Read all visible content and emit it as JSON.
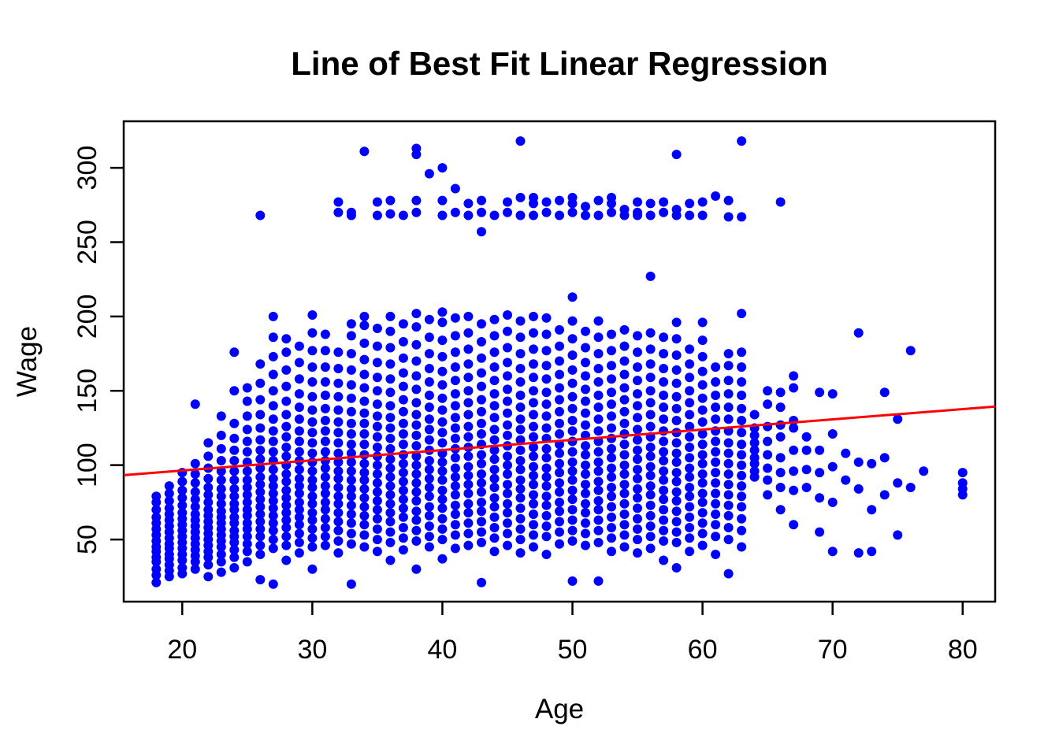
{
  "chart_data": {
    "type": "scatter",
    "title": "Line of Best Fit Linear Regression",
    "xlabel": "Age",
    "ylabel": "Wage",
    "xlim": [
      15.5,
      82.5
    ],
    "ylim": [
      8.2,
      331.3
    ],
    "x_ticks": [
      20,
      30,
      40,
      50,
      60,
      70,
      80
    ],
    "y_ticks": [
      50,
      100,
      150,
      200,
      250,
      300
    ],
    "grid": false,
    "legend": "none",
    "point_color": "#0000FF",
    "line_color": "#FF0000",
    "axis_color": "#000000",
    "regression_line": {
      "slope": 0.688,
      "intercept": 82.6,
      "x1": 15.5,
      "y1": 93.3,
      "x2": 82.5,
      "y2": 139.4
    },
    "columns": {
      "18": [
        21,
        26,
        30,
        35,
        38,
        42,
        45,
        49,
        53,
        57,
        61,
        65,
        70,
        75,
        79
      ],
      "19": [
        25,
        29,
        33,
        37,
        40,
        44,
        47,
        51,
        55,
        59,
        63,
        67,
        71,
        76,
        81,
        86
      ],
      "20": [
        27,
        31,
        36,
        40,
        44,
        48,
        52,
        56,
        60,
        64,
        68,
        73,
        78,
        83,
        89,
        95
      ],
      "21": [
        30,
        35,
        39,
        43,
        47,
        51,
        55,
        59,
        63,
        67,
        72,
        77,
        82,
        88,
        94,
        101,
        141
      ],
      "22": [
        25,
        33,
        38,
        42,
        46,
        50,
        54,
        58,
        62,
        66,
        70,
        75,
        80,
        85,
        91,
        98,
        106,
        115
      ],
      "23": [
        28,
        35,
        40,
        45,
        49,
        53,
        57,
        61,
        65,
        69,
        74,
        79,
        84,
        90,
        96,
        103,
        111,
        120,
        133
      ],
      "24": [
        31,
        38,
        43,
        48,
        52,
        56,
        61,
        65,
        70,
        74,
        79,
        84,
        90,
        96,
        103,
        110,
        118,
        128,
        150,
        176
      ],
      "25": [
        35,
        42,
        47,
        52,
        57,
        61,
        66,
        70,
        75,
        80,
        85,
        90,
        96,
        102,
        109,
        116,
        124,
        133,
        143,
        152
      ],
      "26": [
        23,
        40,
        46,
        52,
        57,
        62,
        67,
        72,
        77,
        82,
        87,
        92,
        98,
        104,
        110,
        117,
        125,
        134,
        144,
        155,
        168,
        268
      ],
      "27": [
        20,
        44,
        50,
        56,
        61,
        66,
        71,
        76,
        81,
        86,
        91,
        97,
        103,
        109,
        116,
        123,
        131,
        140,
        150,
        161,
        173,
        186,
        200
      ],
      "28": [
        36,
        46,
        52,
        58,
        63,
        68,
        73,
        78,
        83,
        89,
        94,
        100,
        106,
        112,
        119,
        126,
        134,
        143,
        153,
        164,
        176,
        185
      ],
      "29": [
        41,
        48,
        54,
        60,
        65,
        70,
        75,
        81,
        86,
        91,
        97,
        103,
        109,
        116,
        123,
        131,
        139,
        148,
        158,
        169,
        180
      ],
      "30": [
        30,
        45,
        51,
        57,
        63,
        68,
        74,
        79,
        85,
        90,
        96,
        102,
        108,
        115,
        122,
        129,
        137,
        146,
        156,
        166,
        177,
        189,
        201
      ],
      "31": [
        46,
        52,
        58,
        64,
        70,
        75,
        81,
        86,
        92,
        98,
        103,
        109,
        116,
        123,
        130,
        138,
        147,
        156,
        166,
        177,
        188
      ],
      "32": [
        41,
        49,
        56,
        62,
        68,
        74,
        79,
        85,
        91,
        96,
        102,
        108,
        115,
        122,
        129,
        137,
        146,
        155,
        165,
        176,
        270,
        277
      ],
      "33": [
        20,
        47,
        54,
        61,
        67,
        73,
        79,
        84,
        90,
        96,
        102,
        108,
        114,
        121,
        128,
        136,
        145,
        154,
        164,
        175,
        187,
        195,
        268,
        270
      ],
      "34": [
        45,
        53,
        60,
        66,
        72,
        78,
        84,
        90,
        95,
        101,
        107,
        114,
        121,
        128,
        135,
        143,
        152,
        161,
        171,
        182,
        194,
        200,
        311
      ],
      "35": [
        42,
        50,
        57,
        64,
        70,
        76,
        82,
        88,
        94,
        100,
        106,
        112,
        119,
        126,
        133,
        141,
        150,
        159,
        169,
        180,
        192,
        268,
        277
      ],
      "36": [
        36,
        48,
        55,
        62,
        68,
        74,
        80,
        86,
        92,
        98,
        104,
        111,
        118,
        125,
        132,
        140,
        149,
        158,
        168,
        179,
        190,
        200,
        269,
        278
      ],
      "37": [
        43,
        51,
        58,
        65,
        71,
        77,
        83,
        89,
        95,
        101,
        107,
        114,
        121,
        128,
        136,
        144,
        153,
        162,
        172,
        183,
        195,
        268
      ],
      "38": [
        30,
        49,
        56,
        63,
        69,
        76,
        82,
        88,
        94,
        100,
        106,
        113,
        120,
        127,
        134,
        142,
        151,
        160,
        170,
        181,
        193,
        202,
        270,
        278,
        309,
        313
      ],
      "39": [
        45,
        52,
        59,
        66,
        72,
        79,
        85,
        91,
        97,
        103,
        110,
        117,
        124,
        131,
        139,
        147,
        156,
        165,
        175,
        186,
        198,
        296
      ],
      "40": [
        37,
        50,
        57,
        64,
        71,
        77,
        83,
        90,
        96,
        102,
        108,
        115,
        122,
        129,
        137,
        145,
        154,
        163,
        173,
        184,
        196,
        203,
        268,
        278,
        300
      ],
      "41": [
        44,
        53,
        60,
        67,
        73,
        80,
        86,
        92,
        98,
        105,
        111,
        118,
        125,
        132,
        140,
        148,
        157,
        166,
        176,
        187,
        199,
        270,
        286
      ],
      "42": [
        46,
        54,
        61,
        68,
        74,
        81,
        87,
        93,
        99,
        106,
        112,
        119,
        126,
        134,
        142,
        150,
        159,
        168,
        178,
        189,
        200,
        268,
        276
      ],
      "43": [
        21,
        48,
        55,
        62,
        69,
        75,
        82,
        88,
        94,
        101,
        107,
        114,
        121,
        128,
        136,
        144,
        153,
        162,
        172,
        183,
        195,
        257,
        270,
        278
      ],
      "44": [
        42,
        51,
        58,
        65,
        72,
        78,
        85,
        91,
        97,
        104,
        110,
        117,
        124,
        132,
        140,
        148,
        157,
        166,
        176,
        187,
        198,
        268
      ],
      "45": [
        46,
        54,
        61,
        68,
        74,
        81,
        87,
        94,
        100,
        106,
        113,
        120,
        127,
        135,
        143,
        151,
        160,
        169,
        179,
        190,
        201,
        270,
        277
      ],
      "46": [
        41,
        50,
        57,
        64,
        71,
        78,
        84,
        90,
        97,
        103,
        110,
        117,
        124,
        131,
        139,
        147,
        156,
        165,
        175,
        186,
        197,
        268,
        280,
        318
      ],
      "47": [
        45,
        53,
        60,
        67,
        74,
        80,
        87,
        93,
        99,
        106,
        112,
        119,
        126,
        134,
        142,
        150,
        159,
        168,
        178,
        189,
        200,
        268,
        276,
        280
      ],
      "48": [
        40,
        52,
        59,
        66,
        73,
        79,
        86,
        92,
        98,
        105,
        111,
        118,
        125,
        133,
        141,
        149,
        158,
        167,
        177,
        188,
        199,
        270,
        277
      ],
      "49": [
        47,
        55,
        62,
        69,
        75,
        82,
        88,
        95,
        101,
        108,
        114,
        121,
        128,
        136,
        144,
        152,
        161,
        170,
        180,
        191,
        268,
        278
      ],
      "50": [
        22,
        49,
        56,
        63,
        70,
        77,
        83,
        90,
        96,
        102,
        109,
        116,
        123,
        130,
        138,
        146,
        155,
        164,
        174,
        185,
        197,
        213,
        270,
        276,
        280
      ],
      "51": [
        46,
        54,
        61,
        68,
        74,
        81,
        87,
        94,
        100,
        107,
        113,
        120,
        127,
        135,
        143,
        151,
        160,
        169,
        179,
        190,
        268,
        274
      ],
      "52": [
        22,
        48,
        56,
        63,
        70,
        76,
        83,
        89,
        96,
        102,
        109,
        116,
        123,
        131,
        139,
        147,
        156,
        165,
        175,
        186,
        197,
        268,
        278
      ],
      "53": [
        42,
        51,
        58,
        65,
        72,
        79,
        85,
        92,
        98,
        105,
        111,
        118,
        125,
        133,
        141,
        149,
        158,
        167,
        177,
        188,
        270,
        276,
        280
      ],
      "54": [
        45,
        53,
        60,
        67,
        74,
        81,
        87,
        94,
        100,
        107,
        114,
        121,
        128,
        136,
        144,
        152,
        161,
        170,
        180,
        191,
        268,
        272
      ],
      "55": [
        41,
        50,
        57,
        64,
        71,
        78,
        84,
        91,
        97,
        104,
        110,
        117,
        124,
        132,
        140,
        148,
        157,
        166,
        176,
        187,
        268,
        270,
        277
      ],
      "56": [
        44,
        52,
        59,
        66,
        73,
        80,
        86,
        93,
        99,
        106,
        112,
        119,
        126,
        134,
        142,
        150,
        159,
        168,
        178,
        189,
        227,
        268,
        276
      ],
      "57": [
        36,
        49,
        56,
        63,
        70,
        77,
        83,
        90,
        96,
        103,
        109,
        116,
        123,
        131,
        139,
        147,
        156,
        165,
        175,
        186,
        270,
        277
      ],
      "58": [
        31,
        48,
        55,
        62,
        69,
        76,
        82,
        89,
        95,
        102,
        108,
        115,
        122,
        130,
        138,
        146,
        155,
        164,
        174,
        185,
        196,
        268,
        272,
        309
      ],
      "59": [
        42,
        51,
        58,
        65,
        72,
        79,
        85,
        92,
        98,
        105,
        112,
        119,
        126,
        134,
        142,
        150,
        159,
        168,
        178,
        268,
        276
      ],
      "60": [
        46,
        54,
        61,
        68,
        75,
        81,
        88,
        94,
        101,
        107,
        114,
        121,
        129,
        137,
        145,
        154,
        163,
        173,
        184,
        196,
        268,
        277
      ],
      "61": [
        40,
        52,
        60,
        67,
        74,
        81,
        88,
        95,
        102,
        109,
        116,
        123,
        131,
        139,
        147,
        156,
        166,
        281
      ],
      "62": [
        27,
        50,
        58,
        66,
        73,
        80,
        87,
        94,
        101,
        108,
        115,
        123,
        131,
        139,
        148,
        157,
        167,
        175,
        267,
        278
      ],
      "63": [
        45,
        56,
        64,
        72,
        79,
        86,
        93,
        100,
        107,
        114,
        122,
        130,
        138,
        147,
        156,
        166,
        176,
        202,
        267,
        318
      ],
      "64": [
        92,
        96,
        101,
        105,
        110,
        115,
        120,
        125,
        134
      ],
      "65": [
        80,
        90,
        98,
        107,
        116,
        126,
        141,
        150
      ],
      "66": [
        70,
        85,
        95,
        105,
        119,
        127,
        139,
        149,
        277
      ],
      "67": [
        60,
        83,
        96,
        110,
        125,
        130,
        152,
        160
      ],
      "68": [
        85,
        97,
        110,
        119
      ],
      "69": [
        55,
        78,
        95,
        110,
        149
      ],
      "70": [
        42,
        75,
        99,
        121,
        148
      ],
      "71": [
        90,
        108
      ],
      "72": [
        41,
        84,
        102,
        189
      ],
      "73": [
        42,
        70,
        101
      ],
      "74": [
        80,
        105,
        149
      ],
      "75": [
        53,
        88,
        131
      ],
      "76": [
        85,
        177
      ],
      "77": [
        96
      ],
      "80": [
        80,
        84,
        88,
        95
      ]
    }
  },
  "layout_note": ""
}
